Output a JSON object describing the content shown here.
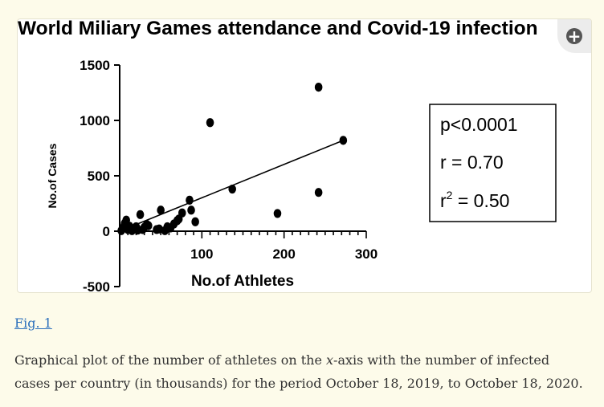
{
  "figure": {
    "link_text": "Fig. 1",
    "caption_before": "Graphical plot of the number of athletes on the ",
    "caption_var": "x",
    "caption_after": "-axis with the number of infected cases per country (in thousands) for the period October 18, 2019, to October 18, 2020.",
    "zoom_icon": "zoom-in-icon"
  },
  "chart_data": {
    "type": "scatter",
    "title": "World Miliary  Games attendance and Covid-19 infection",
    "xlabel": "No.of Athletes",
    "ylabel": "No.of Cases",
    "xlim": [
      0,
      300
    ],
    "ylim": [
      -500,
      1500
    ],
    "xticks": [
      "100",
      "200",
      "300"
    ],
    "yticks": [
      "-500",
      "0",
      "500",
      "1000",
      "1500"
    ],
    "grid": false,
    "points": [
      {
        "x": 2,
        "y": 5
      },
      {
        "x": 4,
        "y": 30
      },
      {
        "x": 6,
        "y": 70
      },
      {
        "x": 8,
        "y": 100
      },
      {
        "x": 10,
        "y": 15
      },
      {
        "x": 12,
        "y": 45
      },
      {
        "x": 15,
        "y": 5
      },
      {
        "x": 18,
        "y": 25
      },
      {
        "x": 20,
        "y": 40
      },
      {
        "x": 22,
        "y": 10
      },
      {
        "x": 25,
        "y": 150
      },
      {
        "x": 28,
        "y": 15
      },
      {
        "x": 30,
        "y": 35
      },
      {
        "x": 33,
        "y": 60
      },
      {
        "x": 35,
        "y": 50
      },
      {
        "x": 45,
        "y": 15
      },
      {
        "x": 48,
        "y": 20
      },
      {
        "x": 50,
        "y": 190
      },
      {
        "x": 55,
        "y": 5
      },
      {
        "x": 58,
        "y": 40
      },
      {
        "x": 62,
        "y": 30
      },
      {
        "x": 66,
        "y": 65
      },
      {
        "x": 70,
        "y": 95
      },
      {
        "x": 72,
        "y": 110
      },
      {
        "x": 76,
        "y": 165
      },
      {
        "x": 85,
        "y": 280
      },
      {
        "x": 87,
        "y": 190
      },
      {
        "x": 92,
        "y": 85
      },
      {
        "x": 110,
        "y": 980
      },
      {
        "x": 137,
        "y": 380
      },
      {
        "x": 192,
        "y": 160
      },
      {
        "x": 242,
        "y": 1300
      },
      {
        "x": 242,
        "y": 350
      },
      {
        "x": 272,
        "y": 820
      }
    ],
    "regression": {
      "x": [
        0,
        272
      ],
      "y": [
        0,
        820
      ]
    },
    "stats": {
      "p_text": "p<0.0001",
      "r_text": "r = 0.70",
      "r2_prefix": "r",
      "r2_sup": "2",
      "r2_suffix": " = 0.50"
    },
    "colors": {
      "points": "#000000",
      "line": "#000000",
      "axes": "#000000"
    }
  }
}
